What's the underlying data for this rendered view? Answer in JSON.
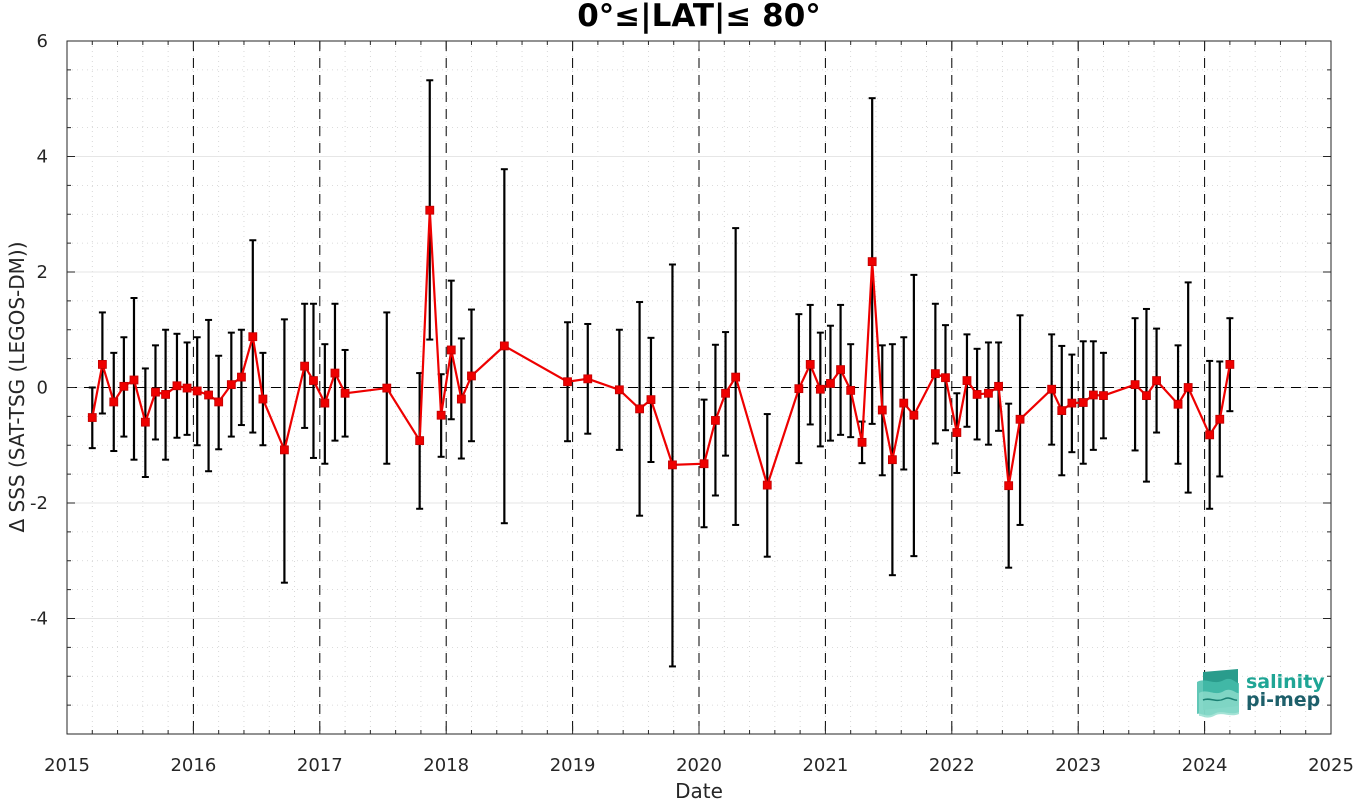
{
  "chart_data": {
    "type": "line",
    "title": "0°≤|LAT|≤ 80°",
    "xlabel": "Date",
    "ylabel": "Δ SSS (SAT-TSG (LEGOS-DM))",
    "xlim": [
      2015,
      2025
    ],
    "ylim": [
      -6,
      6
    ],
    "xticks": [
      "2015",
      "2016",
      "2017",
      "2018",
      "2019",
      "2020",
      "2021",
      "2022",
      "2023",
      "2024",
      "2025"
    ],
    "yticks": [
      "-4",
      "-2",
      "0",
      "2",
      "4",
      "6"
    ],
    "grid": "dotted minor grid",
    "year_dividers": "dashed vertical lines at each year",
    "zero_line": "dashed horizontal line at 0",
    "colors": {
      "series": "#ee0000",
      "error_bars": "#000000"
    },
    "series": [
      {
        "points": [
          {
            "x": 2015.2,
            "y": -0.52,
            "lo": -1.05,
            "hi": 0.0
          },
          {
            "x": 2015.28,
            "y": 0.4,
            "lo": -0.45,
            "hi": 1.3
          },
          {
            "x": 2015.37,
            "y": -0.25,
            "lo": -1.1,
            "hi": 0.6
          },
          {
            "x": 2015.45,
            "y": 0.02,
            "lo": -0.85,
            "hi": 0.87
          },
          {
            "x": 2015.53,
            "y": 0.13,
            "lo": -1.25,
            "hi": 1.55
          },
          {
            "x": 2015.62,
            "y": -0.6,
            "lo": -1.55,
            "hi": 0.33
          },
          {
            "x": 2015.7,
            "y": -0.08,
            "lo": -0.9,
            "hi": 0.73
          },
          {
            "x": 2015.78,
            "y": -0.12,
            "lo": -1.25,
            "hi": 1.0
          },
          {
            "x": 2015.87,
            "y": 0.03,
            "lo": -0.87,
            "hi": 0.93
          },
          {
            "x": 2015.95,
            "y": -0.01,
            "lo": -0.82,
            "hi": 0.78
          },
          {
            "x": 2016.03,
            "y": -0.06,
            "lo": -1.0,
            "hi": 0.87
          },
          {
            "x": 2016.12,
            "y": -0.13,
            "lo": -1.45,
            "hi": 1.17
          },
          {
            "x": 2016.2,
            "y": -0.25,
            "lo": -1.07,
            "hi": 0.55
          },
          {
            "x": 2016.3,
            "y": 0.05,
            "lo": -0.85,
            "hi": 0.95
          },
          {
            "x": 2016.38,
            "y": 0.18,
            "lo": -0.65,
            "hi": 1.0
          },
          {
            "x": 2016.47,
            "y": 0.88,
            "lo": -0.78,
            "hi": 2.55
          },
          {
            "x": 2016.55,
            "y": -0.2,
            "lo": -1.0,
            "hi": 0.6
          },
          {
            "x": 2016.72,
            "y": -1.08,
            "lo": -3.38,
            "hi": 1.18
          },
          {
            "x": 2016.88,
            "y": 0.37,
            "lo": -0.7,
            "hi": 1.45
          },
          {
            "x": 2016.95,
            "y": 0.12,
            "lo": -1.22,
            "hi": 1.45
          },
          {
            "x": 2017.04,
            "y": -0.27,
            "lo": -1.32,
            "hi": 0.75
          },
          {
            "x": 2017.12,
            "y": 0.25,
            "lo": -0.92,
            "hi": 1.45
          },
          {
            "x": 2017.2,
            "y": -0.1,
            "lo": -0.85,
            "hi": 0.65
          },
          {
            "x": 2017.53,
            "y": -0.01,
            "lo": -1.32,
            "hi": 1.3
          },
          {
            "x": 2017.79,
            "y": -0.92,
            "lo": -2.1,
            "hi": 0.25
          },
          {
            "x": 2017.87,
            "y": 3.07,
            "lo": 0.83,
            "hi": 5.32
          },
          {
            "x": 2017.96,
            "y": -0.48,
            "lo": -1.2,
            "hi": 0.23
          },
          {
            "x": 2018.04,
            "y": 0.65,
            "lo": -0.55,
            "hi": 1.85
          },
          {
            "x": 2018.12,
            "y": -0.2,
            "lo": -1.23,
            "hi": 0.85
          },
          {
            "x": 2018.2,
            "y": 0.2,
            "lo": -0.93,
            "hi": 1.35
          },
          {
            "x": 2018.46,
            "y": 0.72,
            "lo": -2.35,
            "hi": 3.78
          },
          {
            "x": 2018.96,
            "y": 0.1,
            "lo": -0.93,
            "hi": 1.13
          },
          {
            "x": 2019.12,
            "y": 0.15,
            "lo": -0.8,
            "hi": 1.1
          },
          {
            "x": 2019.37,
            "y": -0.04,
            "lo": -1.08,
            "hi": 1.0
          },
          {
            "x": 2019.53,
            "y": -0.37,
            "lo": -2.22,
            "hi": 1.48
          },
          {
            "x": 2019.62,
            "y": -0.21,
            "lo": -1.29,
            "hi": 0.86
          },
          {
            "x": 2019.79,
            "y": -1.34,
            "lo": -4.83,
            "hi": 2.13
          },
          {
            "x": 2020.04,
            "y": -1.32,
            "lo": -2.42,
            "hi": -0.21
          },
          {
            "x": 2020.13,
            "y": -0.57,
            "lo": -1.87,
            "hi": 0.74
          },
          {
            "x": 2020.21,
            "y": -0.1,
            "lo": -1.18,
            "hi": 0.96
          },
          {
            "x": 2020.29,
            "y": 0.18,
            "lo": -2.38,
            "hi": 2.76
          },
          {
            "x": 2020.54,
            "y": -1.69,
            "lo": -2.93,
            "hi": -0.46
          },
          {
            "x": 2020.79,
            "y": -0.02,
            "lo": -1.31,
            "hi": 1.27
          },
          {
            "x": 2020.88,
            "y": 0.4,
            "lo": -0.64,
            "hi": 1.43
          },
          {
            "x": 2020.96,
            "y": -0.03,
            "lo": -1.02,
            "hi": 0.95
          },
          {
            "x": 2021.04,
            "y": 0.07,
            "lo": -0.92,
            "hi": 1.07
          },
          {
            "x": 2021.12,
            "y": 0.31,
            "lo": -0.82,
            "hi": 1.43
          },
          {
            "x": 2021.2,
            "y": -0.05,
            "lo": -0.86,
            "hi": 0.75
          },
          {
            "x": 2021.29,
            "y": -0.95,
            "lo": -1.31,
            "hi": -0.59
          },
          {
            "x": 2021.37,
            "y": 2.18,
            "lo": -0.63,
            "hi": 5.01
          },
          {
            "x": 2021.45,
            "y": -0.39,
            "lo": -1.52,
            "hi": 0.73
          },
          {
            "x": 2021.53,
            "y": -1.25,
            "lo": -3.25,
            "hi": 0.75
          },
          {
            "x": 2021.62,
            "y": -0.27,
            "lo": -1.42,
            "hi": 0.87
          },
          {
            "x": 2021.7,
            "y": -0.48,
            "lo": -2.92,
            "hi": 1.95
          },
          {
            "x": 2021.87,
            "y": 0.24,
            "lo": -0.97,
            "hi": 1.45
          },
          {
            "x": 2021.95,
            "y": 0.17,
            "lo": -0.74,
            "hi": 1.08
          },
          {
            "x": 2022.04,
            "y": -0.78,
            "lo": -1.48,
            "hi": -0.1
          },
          {
            "x": 2022.12,
            "y": 0.12,
            "lo": -0.68,
            "hi": 0.92
          },
          {
            "x": 2022.2,
            "y": -0.12,
            "lo": -0.9,
            "hi": 0.67
          },
          {
            "x": 2022.29,
            "y": -0.1,
            "lo": -0.99,
            "hi": 0.78
          },
          {
            "x": 2022.37,
            "y": 0.02,
            "lo": -0.75,
            "hi": 0.78
          },
          {
            "x": 2022.45,
            "y": -1.7,
            "lo": -3.12,
            "hi": -0.28
          },
          {
            "x": 2022.54,
            "y": -0.55,
            "lo": -2.38,
            "hi": 1.25
          },
          {
            "x": 2022.79,
            "y": -0.03,
            "lo": -0.99,
            "hi": 0.92
          },
          {
            "x": 2022.87,
            "y": -0.4,
            "lo": -1.52,
            "hi": 0.72
          },
          {
            "x": 2022.95,
            "y": -0.27,
            "lo": -1.12,
            "hi": 0.57
          },
          {
            "x": 2023.04,
            "y": -0.26,
            "lo": -1.32,
            "hi": 0.8
          },
          {
            "x": 2023.12,
            "y": -0.13,
            "lo": -1.08,
            "hi": 0.8
          },
          {
            "x": 2023.2,
            "y": -0.14,
            "lo": -0.88,
            "hi": 0.6
          },
          {
            "x": 2023.45,
            "y": 0.05,
            "lo": -1.09,
            "hi": 1.2
          },
          {
            "x": 2023.54,
            "y": -0.14,
            "lo": -1.63,
            "hi": 1.36
          },
          {
            "x": 2023.62,
            "y": 0.12,
            "lo": -0.78,
            "hi": 1.02
          },
          {
            "x": 2023.79,
            "y": -0.29,
            "lo": -1.32,
            "hi": 0.73
          },
          {
            "x": 2023.87,
            "y": 0.0,
            "lo": -1.82,
            "hi": 1.82
          },
          {
            "x": 2024.04,
            "y": -0.82,
            "lo": -2.1,
            "hi": 0.46
          },
          {
            "x": 2024.12,
            "y": -0.55,
            "lo": -1.54,
            "hi": 0.45
          },
          {
            "x": 2024.2,
            "y": 0.4,
            "lo": -0.41,
            "hi": 1.2
          }
        ]
      }
    ]
  },
  "logo": {
    "line1": "salinity",
    "line2": "pi-mep",
    "color": "#1fa595"
  }
}
